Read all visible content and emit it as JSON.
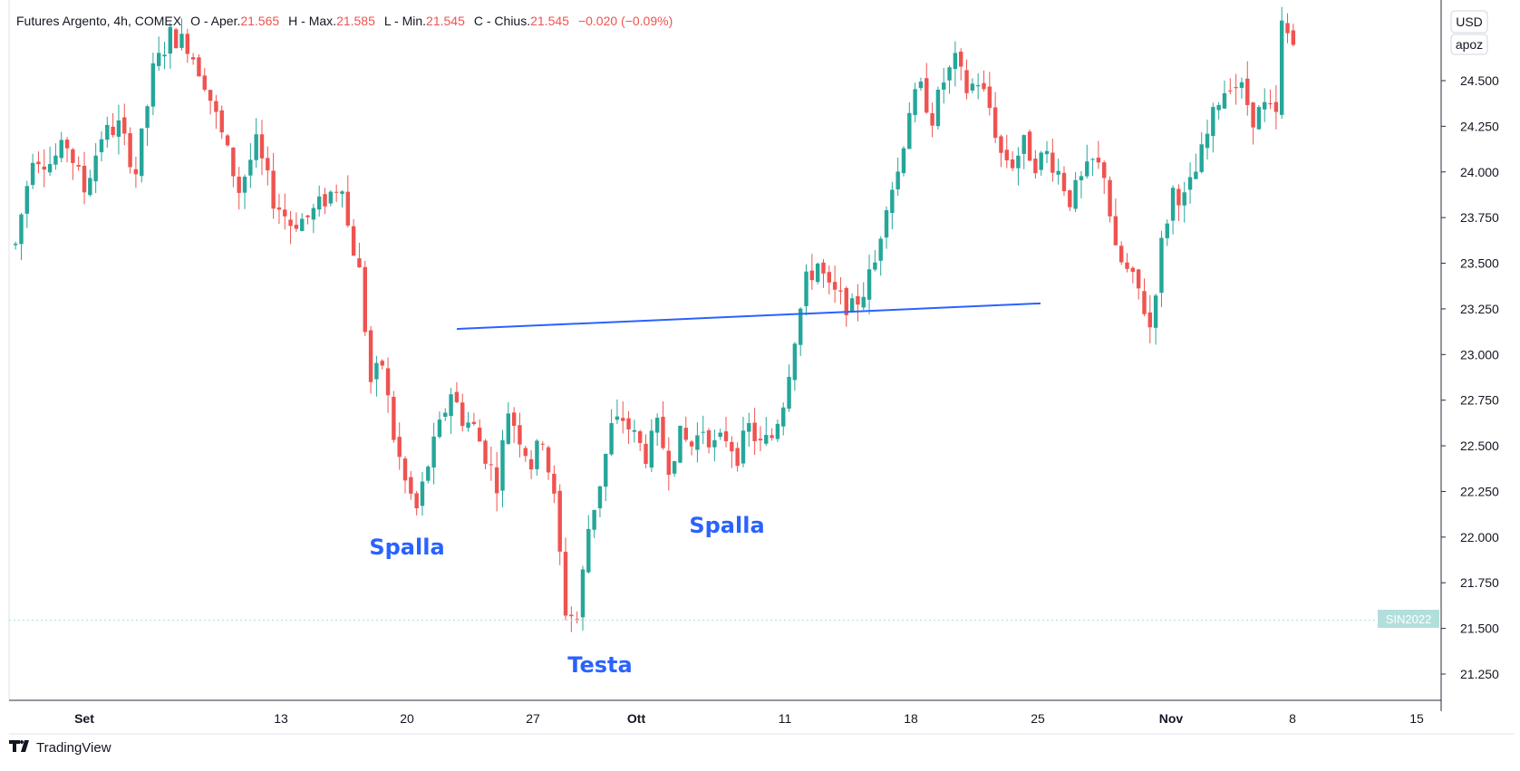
{
  "header": {
    "title": "Futures Argento, 4h, COMEX",
    "o_label": "O - Aper.",
    "o_value": "21.565",
    "h_label": "H - Max.",
    "h_value": "21.585",
    "l_label": "L - Min.",
    "l_value": "21.545",
    "c_label": "C - Chius.",
    "c_value": "21.545",
    "change": "−0.020 (−0.09%)"
  },
  "currency_button": "USD",
  "scale_button": "apoz",
  "symbol_badge": "SIN2022",
  "brand": "TradingView",
  "colors": {
    "up": "#26a69a",
    "down": "#ef5350",
    "trendline": "#2962ff",
    "annotation": "#2962ff",
    "badge": "#b2dfdb",
    "grid_axis": "#787b86"
  },
  "chart_data": {
    "type": "candlestick",
    "y_axis": {
      "ticks": [
        "24.500",
        "24.250",
        "24.000",
        "23.750",
        "23.500",
        "23.250",
        "23.000",
        "22.750",
        "22.500",
        "22.250",
        "22.000",
        "21.750",
        "21.500",
        "21.250"
      ],
      "ylim": [
        21.1,
        24.85
      ]
    },
    "x_axis": {
      "labels": [
        "Set",
        "13",
        "20",
        "27",
        "Ott",
        "11",
        "18",
        "25",
        "Nov",
        "8",
        "15"
      ]
    },
    "annotations": [
      {
        "text": "Spalla",
        "date": "20",
        "price": 22.05
      },
      {
        "text": "Testa",
        "date": "Ott",
        "price": 21.4
      },
      {
        "text": "Spalla",
        "date": "11",
        "price": 22.05
      }
    ],
    "trendline": {
      "from": {
        "date": "24",
        "price": 23.14
      },
      "to": {
        "date": "25",
        "price": 23.28
      }
    },
    "close_path": [
      [
        0,
        23.6
      ],
      [
        3,
        24.1
      ],
      [
        6,
        24.05
      ],
      [
        9,
        24.15
      ],
      [
        12,
        23.9
      ],
      [
        15,
        24.2
      ],
      [
        18,
        24.25
      ],
      [
        21,
        24.0
      ],
      [
        24,
        24.55
      ],
      [
        27,
        24.75
      ],
      [
        30,
        24.7
      ],
      [
        33,
        24.5
      ],
      [
        36,
        24.2
      ],
      [
        39,
        23.9
      ],
      [
        42,
        24.15
      ],
      [
        45,
        23.85
      ],
      [
        48,
        23.72
      ],
      [
        51,
        23.75
      ],
      [
        54,
        23.85
      ],
      [
        57,
        23.95
      ],
      [
        58,
        23.7
      ],
      [
        60,
        23.45
      ],
      [
        62,
        22.85
      ],
      [
        64,
        22.95
      ],
      [
        66,
        22.55
      ],
      [
        68,
        22.3
      ],
      [
        70,
        22.15
      ],
      [
        72,
        22.4
      ],
      [
        74,
        22.6
      ],
      [
        76,
        22.8
      ],
      [
        78,
        22.65
      ],
      [
        80,
        22.6
      ],
      [
        82,
        22.45
      ],
      [
        84,
        22.3
      ],
      [
        86,
        22.7
      ],
      [
        88,
        22.55
      ],
      [
        90,
        22.4
      ],
      [
        92,
        22.55
      ],
      [
        94,
        22.2
      ],
      [
        96,
        21.6
      ],
      [
        98,
        21.55
      ],
      [
        100,
        22.05
      ],
      [
        102,
        22.3
      ],
      [
        104,
        22.6
      ],
      [
        106,
        22.65
      ],
      [
        108,
        22.55
      ],
      [
        110,
        22.45
      ],
      [
        112,
        22.6
      ],
      [
        114,
        22.4
      ],
      [
        116,
        22.55
      ],
      [
        118,
        22.5
      ],
      [
        120,
        22.6
      ],
      [
        122,
        22.5
      ],
      [
        124,
        22.55
      ],
      [
        126,
        22.45
      ],
      [
        128,
        22.6
      ],
      [
        130,
        22.5
      ],
      [
        132,
        22.55
      ],
      [
        134,
        22.75
      ],
      [
        136,
        23.1
      ],
      [
        138,
        23.4
      ],
      [
        140,
        23.5
      ],
      [
        142,
        23.35
      ],
      [
        144,
        23.3
      ],
      [
        146,
        23.25
      ],
      [
        148,
        23.35
      ],
      [
        150,
        23.5
      ],
      [
        152,
        23.85
      ],
      [
        154,
        24.0
      ],
      [
        156,
        24.35
      ],
      [
        158,
        24.45
      ],
      [
        160,
        24.3
      ],
      [
        162,
        24.5
      ],
      [
        164,
        24.6
      ],
      [
        166,
        24.45
      ],
      [
        168,
        24.5
      ],
      [
        170,
        24.35
      ],
      [
        172,
        24.1
      ],
      [
        174,
        24.05
      ],
      [
        176,
        24.15
      ],
      [
        178,
        24.05
      ],
      [
        180,
        24.1
      ],
      [
        182,
        24.0
      ],
      [
        184,
        23.85
      ],
      [
        186,
        23.95
      ],
      [
        188,
        24.05
      ],
      [
        190,
        24.0
      ],
      [
        192,
        23.55
      ],
      [
        194,
        23.45
      ],
      [
        196,
        23.35
      ],
      [
        198,
        23.15
      ],
      [
        200,
        23.6
      ],
      [
        202,
        23.9
      ],
      [
        204,
        23.85
      ],
      [
        206,
        24.0
      ],
      [
        208,
        24.2
      ],
      [
        210,
        24.4
      ],
      [
        212,
        24.5
      ],
      [
        214,
        24.45
      ],
      [
        216,
        24.3
      ],
      [
        218,
        24.35
      ],
      [
        220,
        24.3
      ],
      [
        221,
        24.8
      ],
      [
        223,
        24.7
      ]
    ]
  }
}
